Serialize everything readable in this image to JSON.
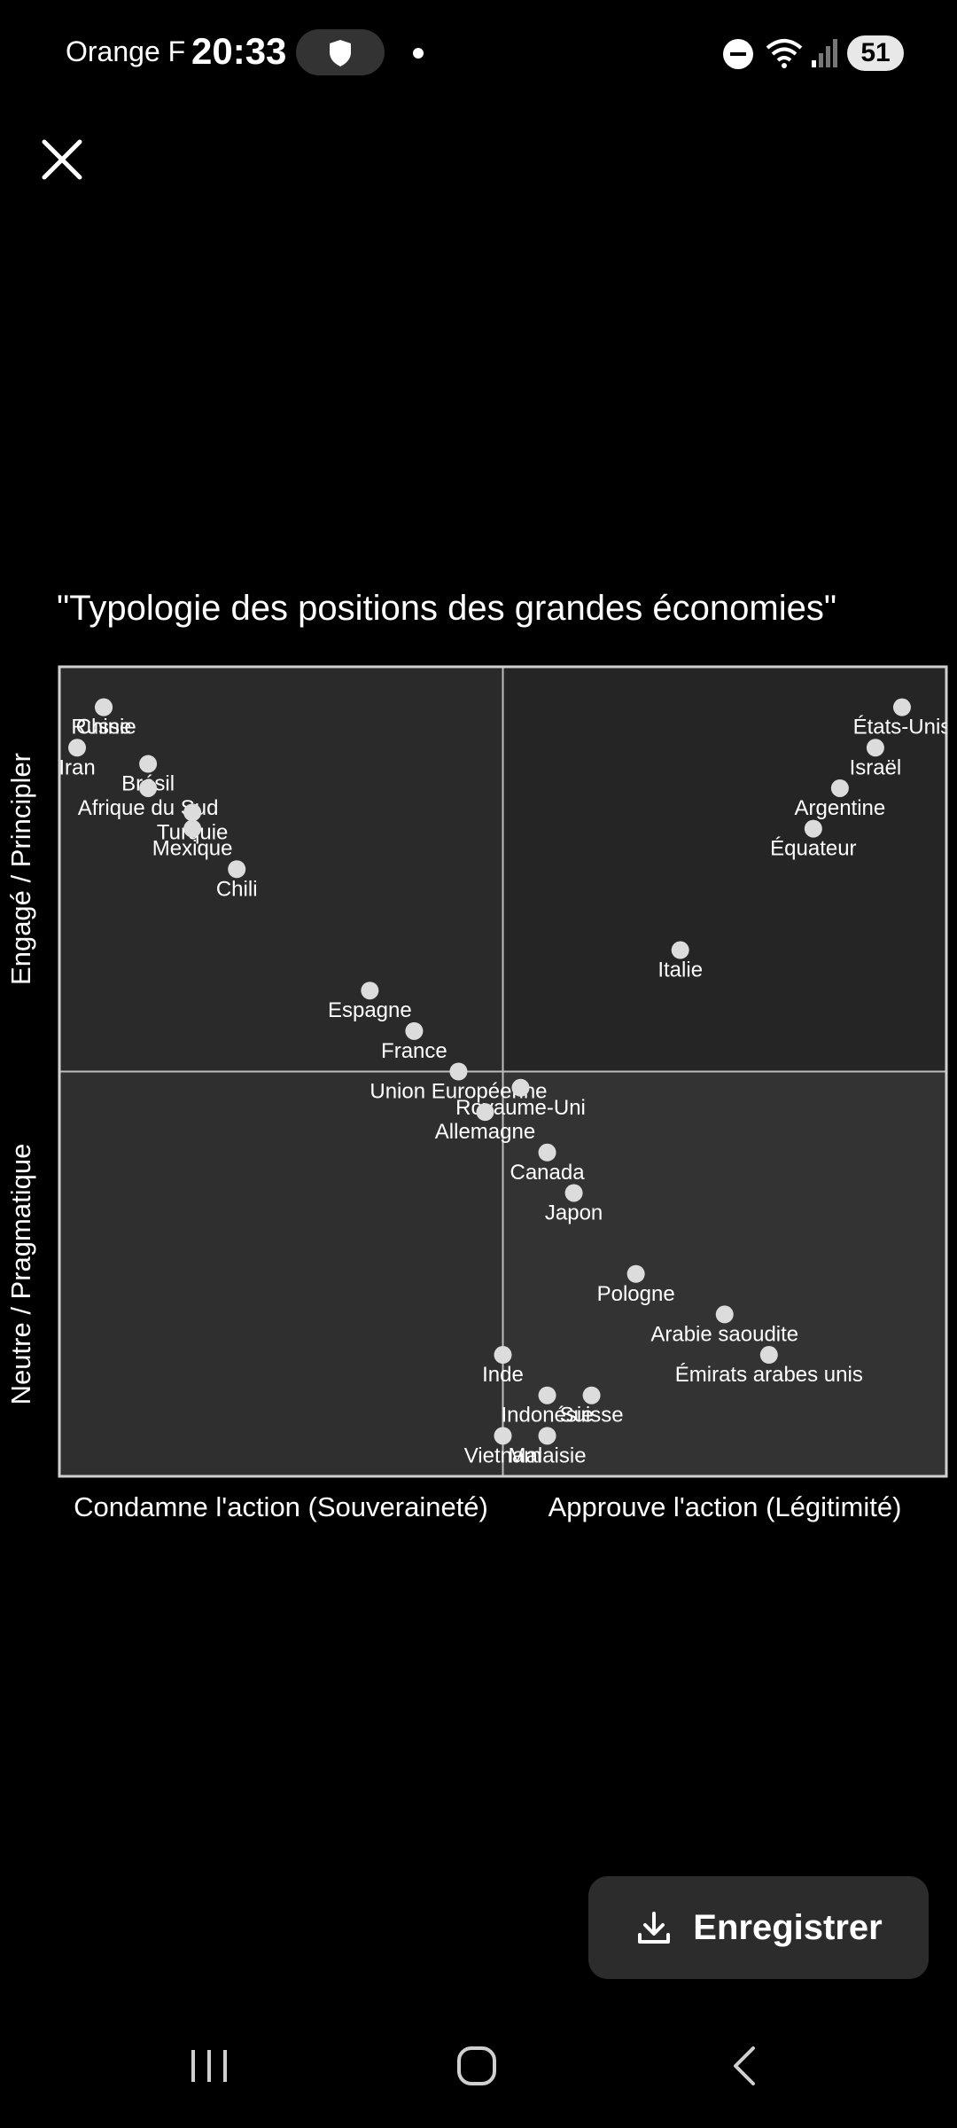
{
  "status_bar": {
    "carrier": "Orange F",
    "time": "20:33",
    "battery": "51",
    "icons": [
      "shield-icon",
      "dot-icon",
      "do-not-disturb-icon",
      "wifi-icon",
      "signal-icon",
      "battery-icon"
    ]
  },
  "toolbar": {
    "close_icon": "close-icon"
  },
  "chart_data": {
    "type": "scatter",
    "title": "\"Typologie des positions des grandes économies\"",
    "xlabel_left": "Condamne l'action (Souveraineté)",
    "xlabel_right": "Approuve l'action (Légitimité)",
    "ylabel_top": "Engagé / Principler",
    "ylabel_bottom": "Neutre / Pragmatique",
    "xlim": [
      -10,
      10
    ],
    "ylim": [
      -10,
      10
    ],
    "grid": false,
    "quadrant_lines": true,
    "background_colors": {
      "left_top": "#2a2a2a",
      "right_top": "#252525",
      "left_bottom": "#2f2f2f",
      "right_bottom": "#333333"
    },
    "point_color": "#dcdcdc",
    "points": [
      {
        "label": "Chine",
        "x": -9,
        "y": 9
      },
      {
        "label": "Russie",
        "x": -9,
        "y": 9
      },
      {
        "label": "Iran",
        "x": -9.6,
        "y": 8
      },
      {
        "label": "Brésil",
        "x": -8,
        "y": 7.6
      },
      {
        "label": "Afrique du Sud",
        "x": -8,
        "y": 7
      },
      {
        "label": "Turquie",
        "x": -7,
        "y": 6.4
      },
      {
        "label": "Mexique",
        "x": -7,
        "y": 6
      },
      {
        "label": "Chili",
        "x": -6,
        "y": 5
      },
      {
        "label": "Espagne",
        "x": -3,
        "y": 2
      },
      {
        "label": "France",
        "x": -2,
        "y": 1
      },
      {
        "label": "Union Européenne",
        "x": -1,
        "y": 0
      },
      {
        "label": "Royaume-Uni",
        "x": 0.4,
        "y": -0.4
      },
      {
        "label": "Allemagne",
        "x": -0.4,
        "y": -1
      },
      {
        "label": "Canada",
        "x": 1,
        "y": -2
      },
      {
        "label": "Japon",
        "x": 1.6,
        "y": -3
      },
      {
        "label": "Pologne",
        "x": 3,
        "y": -5
      },
      {
        "label": "Arabie saoudite",
        "x": 5,
        "y": -6
      },
      {
        "label": "Émirats arabes unis",
        "x": 6,
        "y": -7
      },
      {
        "label": "Inde",
        "x": 0,
        "y": -7
      },
      {
        "label": "Indonésie",
        "x": 1,
        "y": -8
      },
      {
        "label": "Suisse",
        "x": 2,
        "y": -8
      },
      {
        "label": "Vietnam",
        "x": 0,
        "y": -9
      },
      {
        "label": "Malaisie",
        "x": 1,
        "y": -9
      },
      {
        "label": "Italie",
        "x": 4,
        "y": 3
      },
      {
        "label": "États-Unis",
        "x": 9,
        "y": 9
      },
      {
        "label": "Israël",
        "x": 8.4,
        "y": 8
      },
      {
        "label": "Argentine",
        "x": 7.6,
        "y": 7
      },
      {
        "label": "Équateur",
        "x": 7,
        "y": 6
      }
    ]
  },
  "save_button": {
    "label": "Enregistrer",
    "icon": "download-icon"
  },
  "nav_bar": {
    "icons": [
      "recents-icon",
      "home-icon",
      "back-icon"
    ]
  }
}
